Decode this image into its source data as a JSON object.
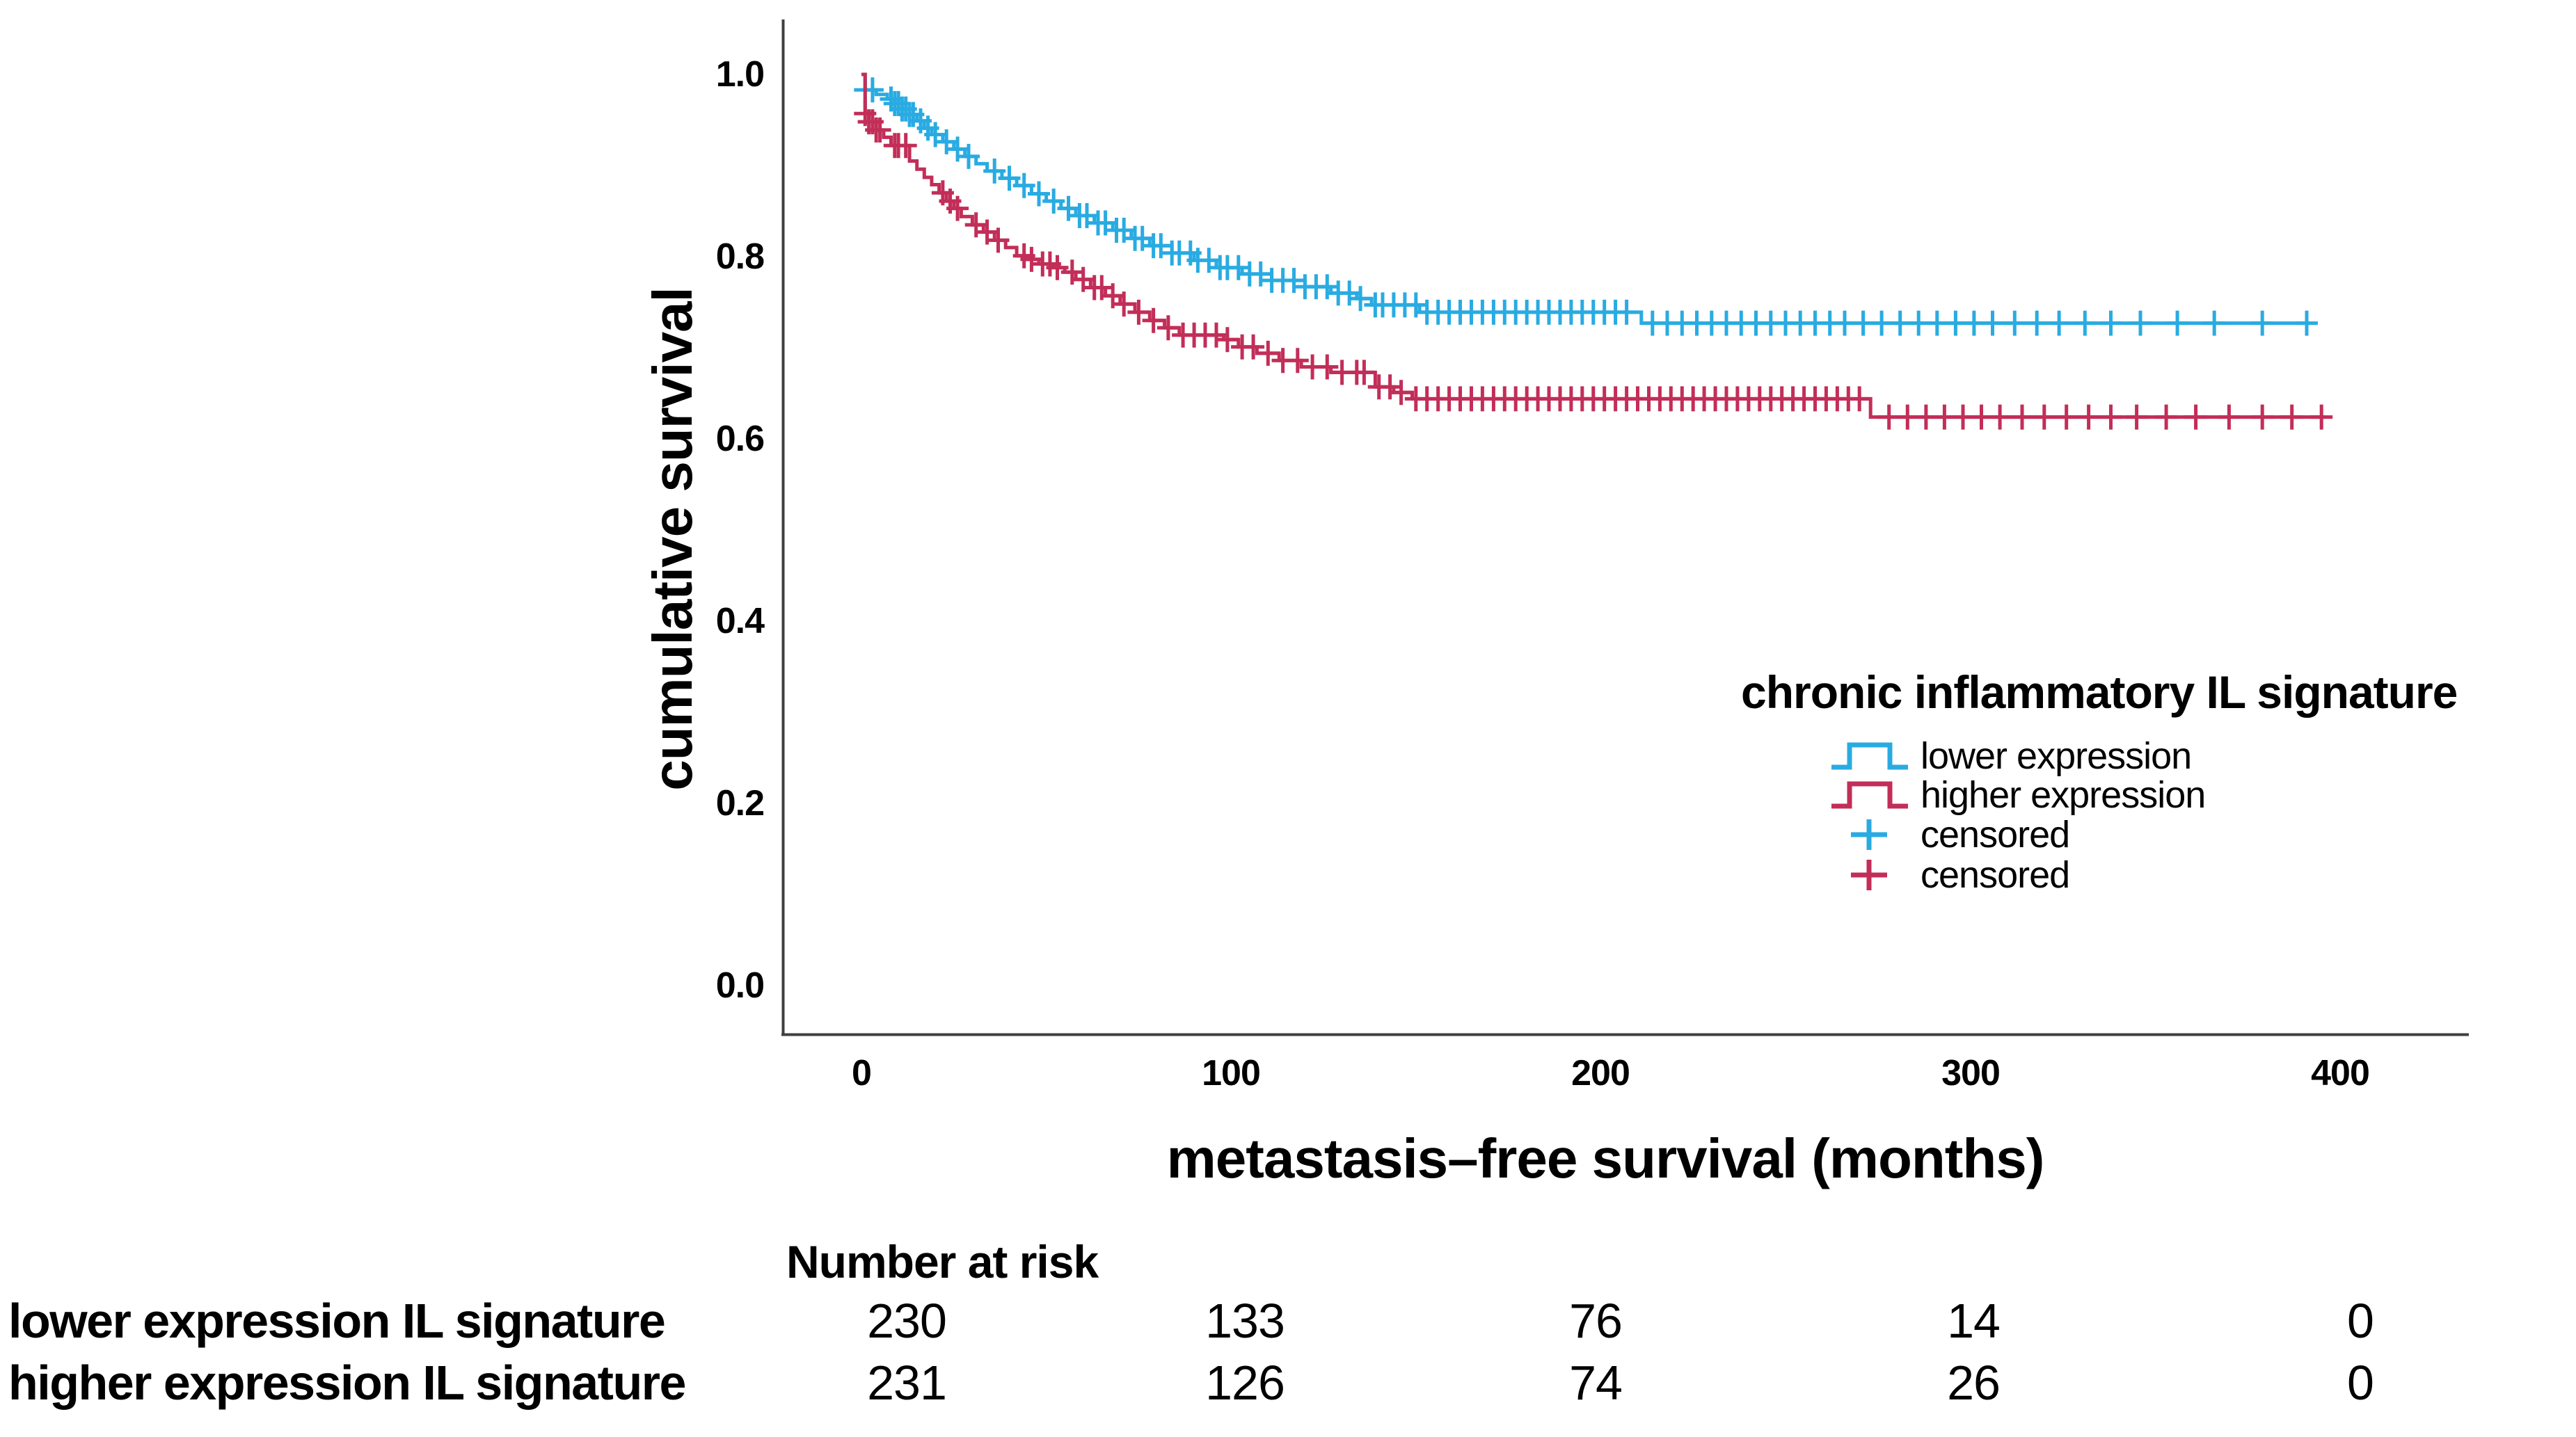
{
  "page": {
    "background": "#ffffff",
    "text_color": "#000000",
    "axis_color": "#3f3f3f"
  },
  "chart_data": {
    "type": "line",
    "subtype": "kaplan_meier_step",
    "title": "",
    "xlabel": "metastasis–free survival (months)",
    "ylabel": "cumulative survival",
    "xlim": [
      -21,
      437
    ],
    "ylim": [
      -0.055,
      1.055
    ],
    "grid": false,
    "x_tick_values": [
      0,
      100,
      200,
      300,
      400
    ],
    "x_tick_labels": [
      "0",
      "100",
      "200",
      "300",
      "400"
    ],
    "y_tick_values": [
      1.0,
      0.8,
      0.6,
      0.4,
      0.2,
      0.0
    ],
    "y_tick_labels": [
      "1.0",
      "0.8",
      "0.6",
      "0.4",
      "0.2",
      "0.0"
    ],
    "legend": {
      "title": "chronic inflammatory IL signature",
      "position": "right-center",
      "items": [
        {
          "label": "lower expression",
          "symbol": "step-line",
          "color": "#29ABE2"
        },
        {
          "label": "higher expression",
          "symbol": "step-line",
          "color": "#C22E58"
        },
        {
          "label": "censored",
          "symbol": "plus",
          "color": "#29ABE2"
        },
        {
          "label": "censored",
          "symbol": "plus",
          "color": "#C22E58"
        }
      ]
    },
    "series": [
      {
        "name": "lower expression",
        "color": "#29ABE2",
        "end_month": 392,
        "steps": [
          [
            0,
            1.0
          ],
          [
            1,
            0.983
          ],
          [
            4,
            0.978
          ],
          [
            7,
            0.973
          ],
          [
            9,
            0.968
          ],
          [
            11,
            0.962
          ],
          [
            13,
            0.956
          ],
          [
            15,
            0.949
          ],
          [
            17,
            0.941
          ],
          [
            19,
            0.934
          ],
          [
            22,
            0.926
          ],
          [
            25,
            0.918
          ],
          [
            28,
            0.91
          ],
          [
            31,
            0.902
          ],
          [
            34,
            0.894
          ],
          [
            38,
            0.886
          ],
          [
            42,
            0.878
          ],
          [
            46,
            0.869
          ],
          [
            50,
            0.861
          ],
          [
            54,
            0.853
          ],
          [
            58,
            0.845
          ],
          [
            63,
            0.837
          ],
          [
            68,
            0.829
          ],
          [
            73,
            0.82
          ],
          [
            78,
            0.812
          ],
          [
            84,
            0.804
          ],
          [
            90,
            0.796
          ],
          [
            96,
            0.788
          ],
          [
            103,
            0.781
          ],
          [
            111,
            0.774
          ],
          [
            120,
            0.767
          ],
          [
            127,
            0.76
          ],
          [
            134,
            0.754
          ],
          [
            138,
            0.747
          ],
          [
            151,
            0.739
          ],
          [
            211,
            0.727
          ]
        ],
        "censor_months": [
          1,
          3,
          8,
          9,
          10,
          11,
          12,
          13,
          14,
          16,
          18,
          20,
          23,
          26,
          29,
          36,
          40,
          44,
          48,
          52,
          56,
          59,
          61,
          64,
          66,
          69,
          71,
          74,
          76,
          79,
          81,
          84,
          86,
          89,
          91,
          94,
          97,
          99,
          102,
          105,
          108,
          111,
          114,
          117,
          120,
          123,
          126,
          129,
          132,
          135,
          139,
          141,
          144,
          147,
          150,
          153,
          156,
          159,
          162,
          165,
          168,
          171,
          174,
          177,
          180,
          183,
          186,
          189,
          192,
          195,
          198,
          201,
          204,
          207,
          214,
          218,
          222,
          226,
          230,
          234,
          238,
          242,
          246,
          250,
          254,
          258,
          262,
          266,
          271,
          276,
          281,
          286,
          291,
          296,
          301,
          306,
          312,
          318,
          324,
          331,
          338,
          346,
          356,
          366,
          379,
          391
        ]
      },
      {
        "name": "higher expression",
        "color": "#C22E58",
        "end_month": 396,
        "steps": [
          [
            0,
            1.0
          ],
          [
            1,
            0.957
          ],
          [
            2,
            0.948
          ],
          [
            4,
            0.939
          ],
          [
            6,
            0.931
          ],
          [
            8,
            0.922
          ],
          [
            13,
            0.905
          ],
          [
            15,
            0.896
          ],
          [
            17,
            0.887
          ],
          [
            19,
            0.879
          ],
          [
            21,
            0.87
          ],
          [
            23,
            0.861
          ],
          [
            25,
            0.853
          ],
          [
            27,
            0.844
          ],
          [
            30,
            0.835
          ],
          [
            33,
            0.827
          ],
          [
            36,
            0.818
          ],
          [
            39,
            0.81
          ],
          [
            42,
            0.801
          ],
          [
            45,
            0.797
          ],
          [
            48,
            0.792
          ],
          [
            52,
            0.788
          ],
          [
            55,
            0.783
          ],
          [
            58,
            0.775
          ],
          [
            62,
            0.766
          ],
          [
            66,
            0.757
          ],
          [
            70,
            0.748
          ],
          [
            74,
            0.739
          ],
          [
            78,
            0.73
          ],
          [
            82,
            0.722
          ],
          [
            86,
            0.714
          ],
          [
            98,
            0.709
          ],
          [
            102,
            0.701
          ],
          [
            107,
            0.694
          ],
          [
            113,
            0.686
          ],
          [
            119,
            0.679
          ],
          [
            127,
            0.673
          ],
          [
            139,
            0.657
          ],
          [
            144,
            0.651
          ],
          [
            149,
            0.644
          ],
          [
            273,
            0.624
          ]
        ],
        "censor_months": [
          1,
          2,
          3,
          4,
          5,
          9,
          10,
          12,
          22,
          24,
          26,
          31,
          34,
          37,
          44,
          46,
          49,
          51,
          53,
          57,
          60,
          63,
          65,
          68,
          71,
          75,
          79,
          83,
          87,
          90,
          93,
          96,
          99,
          103,
          106,
          110,
          114,
          118,
          122,
          126,
          130,
          134,
          136,
          140,
          143,
          146,
          150,
          153,
          156,
          159,
          162,
          165,
          168,
          171,
          174,
          177,
          180,
          183,
          186,
          189,
          192,
          195,
          198,
          201,
          204,
          207,
          210,
          213,
          216,
          219,
          222,
          225,
          228,
          231,
          234,
          237,
          240,
          243,
          246,
          249,
          252,
          255,
          258,
          261,
          264,
          267,
          270,
          278,
          283,
          288,
          293,
          298,
          303,
          308,
          314,
          320,
          326,
          332,
          338,
          345,
          353,
          361,
          370,
          379,
          387,
          395
        ]
      }
    ]
  },
  "risk_table": {
    "header": "Number at risk",
    "time_points": [
      0,
      100,
      200,
      300,
      400
    ],
    "rows": [
      {
        "label": "lower expression IL signature",
        "values": [
          "230",
          "133",
          "76",
          "14",
          "0"
        ]
      },
      {
        "label": "higher expression IL signature",
        "values": [
          "231",
          "126",
          "74",
          "26",
          "0"
        ]
      }
    ]
  }
}
